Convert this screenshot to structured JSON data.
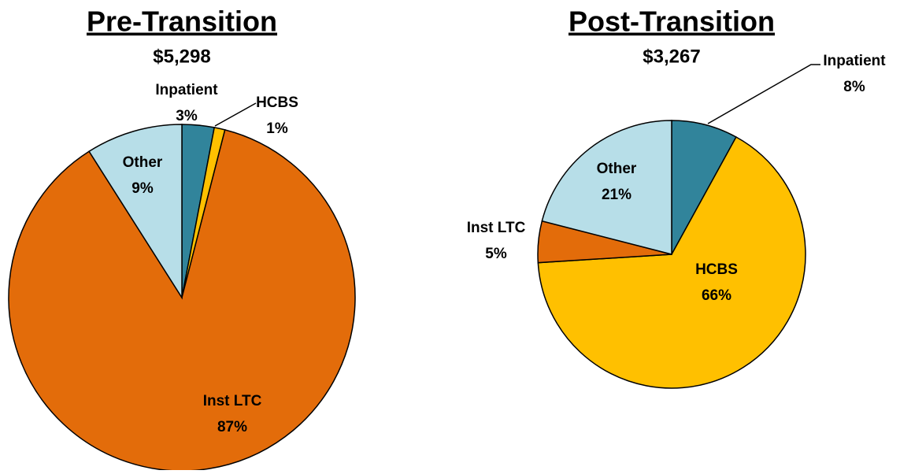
{
  "chart_data": [
    {
      "type": "pie",
      "title": "Pre-Transition",
      "subtitle": "$5,298",
      "categories": [
        "Inpatient",
        "HCBS",
        "Inst LTC",
        "Other"
      ],
      "values": [
        3,
        1,
        87,
        9
      ],
      "value_labels": [
        "3%",
        "1%",
        "87%",
        "9%"
      ],
      "colors": [
        "#31849b",
        "#ffc000",
        "#e36c0a",
        "#b7dee8"
      ]
    },
    {
      "type": "pie",
      "title": "Post-Transition",
      "subtitle": "$3,267",
      "categories": [
        "Inpatient",
        "HCBS",
        "Inst LTC",
        "Other"
      ],
      "values": [
        8,
        66,
        5,
        21
      ],
      "value_labels": [
        "8%",
        "66%",
        "5%",
        "21%"
      ],
      "colors": [
        "#31849b",
        "#ffc000",
        "#e36c0a",
        "#b7dee8"
      ]
    }
  ]
}
